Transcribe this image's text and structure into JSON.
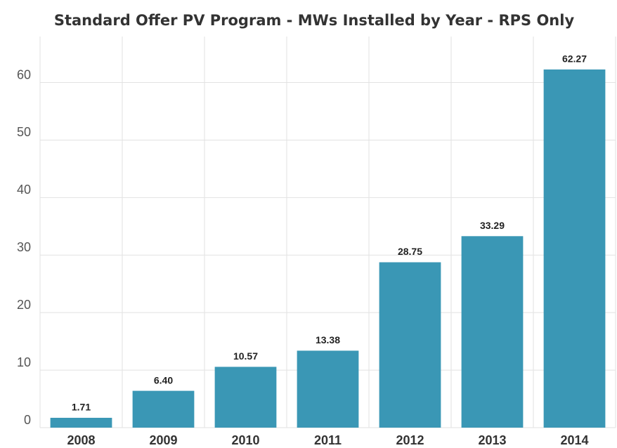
{
  "chart_data": {
    "type": "bar",
    "title": "Standard Offer PV Program - MWs Installed by Year - RPS Only",
    "categories": [
      "2008",
      "2009",
      "2010",
      "2011",
      "2012",
      "2013",
      "2014"
    ],
    "values": [
      1.71,
      6.4,
      10.57,
      13.38,
      28.75,
      33.29,
      62.27
    ],
    "value_labels": [
      "1.71",
      "6.40",
      "10.57",
      "13.38",
      "28.75",
      "33.29",
      "62.27"
    ],
    "color": "#3a97b5",
    "ylim": [
      0,
      68
    ],
    "yticks": [
      0,
      10,
      20,
      30,
      40,
      50,
      60
    ],
    "grid": true
  }
}
